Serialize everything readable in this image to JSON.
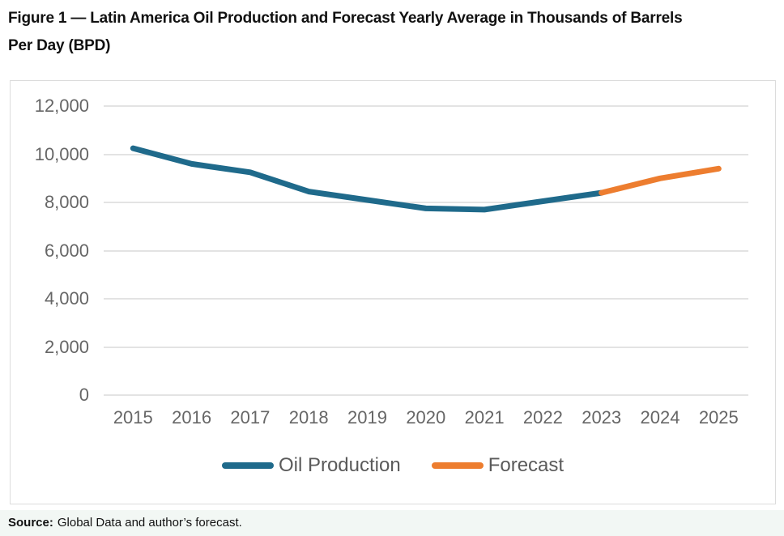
{
  "figure": {
    "title_lines": [
      "Figure 1 — Latin America Oil Production and Forecast Yearly Average in Thousands of Barrels",
      "Per Day (BPD)"
    ]
  },
  "source": {
    "prefix": "Source:",
    "text": "Global Data and author’s forecast."
  },
  "colors": {
    "production_line": "#1f6a8b",
    "forecast_line": "#ed7d2f",
    "gridline": "#e3e3e3",
    "axis_text": "#666666",
    "legend_text": "#5a5a5a",
    "card_border": "#dcdcdc",
    "source_band_bg": "#f2f7f4"
  },
  "chart_data": {
    "type": "line",
    "title": "Figure 1 — Latin America Oil Production and Forecast Yearly Average in Thousands of Barrels Per Day (BPD)",
    "x": [
      2015,
      2016,
      2017,
      2018,
      2019,
      2020,
      2021,
      2022,
      2023,
      2024,
      2025
    ],
    "x_labels": [
      "2015",
      "2016",
      "2017",
      "2018",
      "2019",
      "2020",
      "2021",
      "2022",
      "2023",
      "2024",
      "2025"
    ],
    "xlabel": "",
    "ylabel": "",
    "ylim": [
      0,
      12000
    ],
    "ytick_interval": 2000,
    "ytick_labels": [
      "12,000",
      "10,000",
      "8,000",
      "6,000",
      "4,000",
      "2,000",
      "0"
    ],
    "grid": "horizontal",
    "legend_position": "bottom",
    "series": [
      {
        "name": "Oil Production",
        "color": "#1f6a8b",
        "x": [
          2015,
          2016,
          2017,
          2018,
          2019,
          2020,
          2021,
          2022,
          2023
        ],
        "values": [
          10250,
          9600,
          9250,
          8450,
          8100,
          7750,
          7700,
          8050,
          8400
        ]
      },
      {
        "name": "Forecast",
        "color": "#ed7d2f",
        "x": [
          2023,
          2024,
          2025
        ],
        "values": [
          8400,
          9000,
          9400
        ]
      }
    ],
    "source": "Source: Global Data and author’s forecast."
  }
}
